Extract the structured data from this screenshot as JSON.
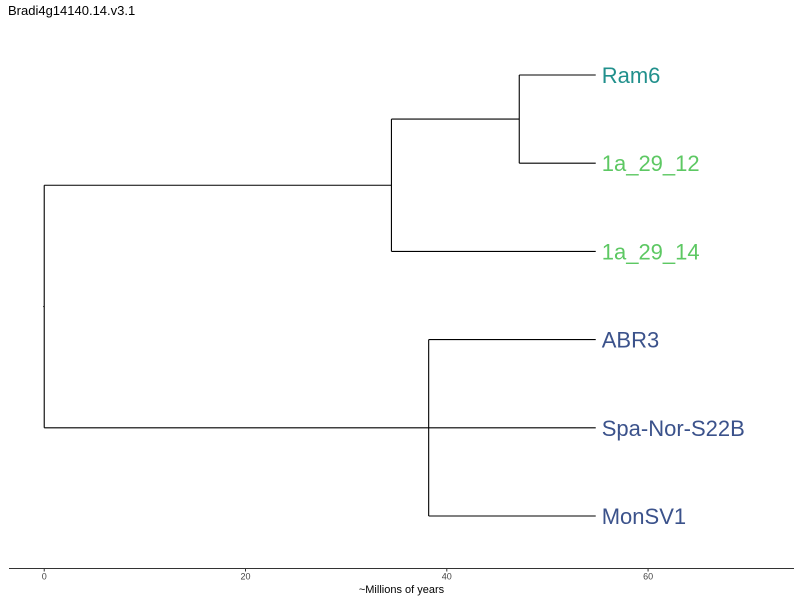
{
  "title": "Bradi4g14140.14.v3.1",
  "axis": {
    "label": "~Millions of years",
    "ticks": [
      0,
      20,
      40,
      60
    ],
    "range": [
      -3.5,
      74.5
    ]
  },
  "colors": {
    "branch": "#000000",
    "teal": "#21908c",
    "green": "#5dc863",
    "navy": "#3b528b"
  },
  "tree": {
    "nodes": [
      {
        "id": "root",
        "parent": null,
        "x": 0
      },
      {
        "id": "cladeA",
        "parent": "root",
        "x": 34.5
      },
      {
        "id": "cladeA1",
        "parent": "cladeA",
        "x": 47.2
      },
      {
        "id": "cladeB",
        "parent": "root",
        "x": 38.2
      }
    ],
    "tips": [
      {
        "label": "Ram6",
        "parent": "cladeA1",
        "x": 54.8,
        "color": "#21908c"
      },
      {
        "label": "1a_29_12",
        "parent": "cladeA1",
        "x": 54.8,
        "color": "#5dc863"
      },
      {
        "label": "1a_29_14",
        "parent": "cladeA",
        "x": 54.8,
        "color": "#5dc863"
      },
      {
        "label": "ABR3",
        "parent": "cladeB",
        "x": 54.8,
        "color": "#3b528b"
      },
      {
        "label": "Spa-Nor-S22B",
        "parent": "cladeB",
        "x": 54.8,
        "color": "#3b528b"
      },
      {
        "label": "MonSV1",
        "parent": "cladeB",
        "x": 54.8,
        "color": "#3b528b"
      }
    ]
  }
}
